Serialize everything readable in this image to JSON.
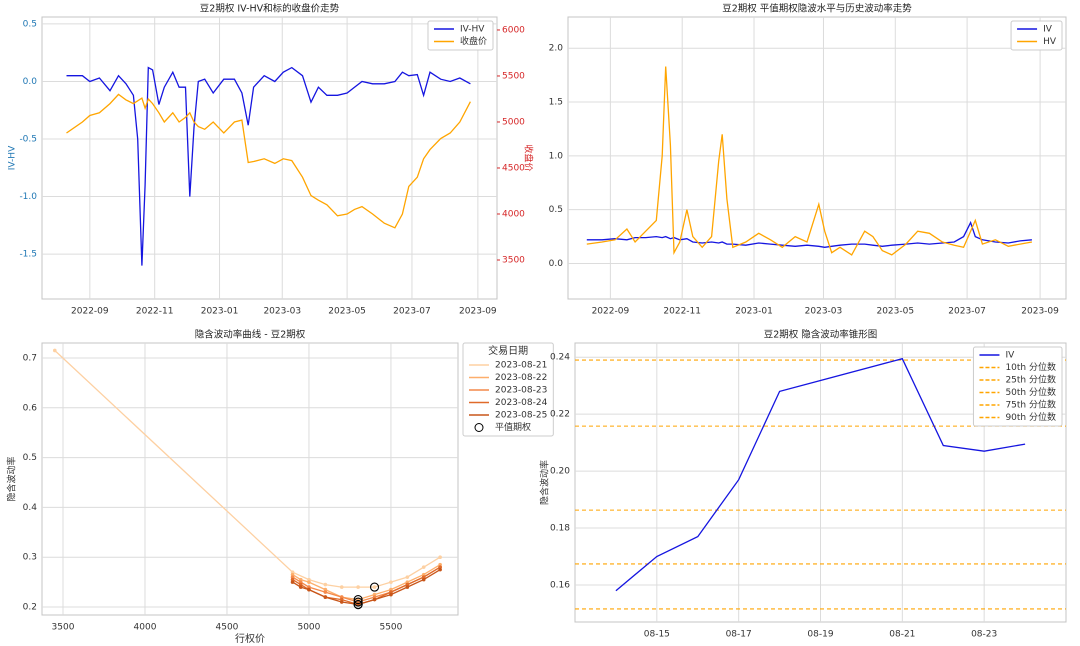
{
  "chart_data": [
    {
      "type": "line",
      "title": "豆2期权 IV-HV和标的收盘价走势",
      "ylabel": "IV-HV",
      "y2label": "收盘价",
      "ycolor": "#1f77b4",
      "y2color": "#d62728",
      "grid": true,
      "legend": "upper right",
      "x": [
        "2022-08-10",
        "2022-08-25",
        "2022-09-01",
        "2022-09-10",
        "2022-09-20",
        "2022-09-28",
        "2022-10-05",
        "2022-10-12",
        "2022-10-16",
        "2022-10-20",
        "2022-10-23",
        "2022-10-26",
        "2022-10-30",
        "2022-11-05",
        "2022-11-10",
        "2022-11-18",
        "2022-11-24",
        "2022-11-30",
        "2022-12-04",
        "2022-12-08",
        "2022-12-12",
        "2022-12-18",
        "2022-12-26",
        "2023-01-05",
        "2023-01-15",
        "2023-01-22",
        "2023-01-28",
        "2023-02-02",
        "2023-02-12",
        "2023-02-22",
        "2023-03-02",
        "2023-03-10",
        "2023-03-20",
        "2023-03-28",
        "2023-04-04",
        "2023-04-12",
        "2023-04-22",
        "2023-05-01",
        "2023-05-08",
        "2023-05-15",
        "2023-05-25",
        "2023-06-05",
        "2023-06-15",
        "2023-06-22",
        "2023-06-28",
        "2023-07-06",
        "2023-07-12",
        "2023-07-18",
        "2023-07-28",
        "2023-08-06",
        "2023-08-15",
        "2023-08-25"
      ],
      "series": [
        {
          "name": "IV-HV",
          "color": "#1515e0",
          "values": [
            0.05,
            0.05,
            0.0,
            0.03,
            -0.08,
            0.05,
            -0.02,
            -0.12,
            -0.5,
            -1.6,
            -0.9,
            0.12,
            0.1,
            -0.2,
            -0.05,
            0.08,
            -0.05,
            -0.05,
            -1.0,
            -0.4,
            0.0,
            0.02,
            -0.1,
            0.02,
            0.02,
            -0.1,
            -0.38,
            -0.05,
            0.05,
            0.0,
            0.08,
            0.12,
            0.05,
            -0.18,
            -0.05,
            -0.12,
            -0.12,
            -0.1,
            -0.05,
            0.0,
            -0.02,
            -0.02,
            0.0,
            0.08,
            0.05,
            0.06,
            -0.12,
            0.08,
            0.02,
            0.0,
            0.03,
            -0.02
          ]
        },
        {
          "name": "收盘价",
          "color": "#ffa500",
          "axis": "y2",
          "values": [
            4880,
            5000,
            5070,
            5100,
            5200,
            5300,
            5240,
            5200,
            5230,
            5260,
            5150,
            5250,
            5200,
            5100,
            5000,
            5100,
            5000,
            5050,
            5100,
            5000,
            4950,
            4920,
            5000,
            4880,
            5000,
            5020,
            4560,
            4570,
            4600,
            4550,
            4600,
            4580,
            4400,
            4200,
            4150,
            4100,
            3980,
            4000,
            4050,
            4080,
            4000,
            3900,
            3850,
            4000,
            4300,
            4400,
            4600,
            4700,
            4820,
            4880,
            5000,
            5220
          ]
        }
      ],
      "xlim": [
        "2022-07-18",
        "2023-09-19"
      ],
      "xticks": [
        {
          "value": "2022-09-01",
          "label": "2022-09"
        },
        {
          "value": "2022-11-01",
          "label": "2022-11"
        },
        {
          "value": "2023-01-01",
          "label": "2023-01"
        },
        {
          "value": "2023-03-01",
          "label": "2023-03"
        },
        {
          "value": "2023-05-01",
          "label": "2023-05"
        },
        {
          "value": "2023-07-01",
          "label": "2023-07"
        },
        {
          "value": "2023-09-01",
          "label": "2023-09"
        }
      ],
      "ylim": [
        -1.89,
        0.56
      ],
      "yticks": [
        -1.5,
        {
          "value": -1.0,
          "label": "-1.0"
        },
        -0.5,
        {
          "value": 0,
          "label": "0.0"
        },
        0.5
      ],
      "y2lim": [
        3076,
        6141
      ],
      "y2ticks": [
        3500,
        4000,
        4500,
        5000,
        5500,
        6000
      ]
    },
    {
      "type": "line",
      "title": "豆2期权 平值期权隐波水平与历史波动率走势",
      "grid": true,
      "legend": "upper right",
      "x": [
        "2022-08-12",
        "2022-08-25",
        "2022-09-05",
        "2022-09-15",
        "2022-09-22",
        "2022-10-01",
        "2022-10-10",
        "2022-10-15",
        "2022-10-18",
        "2022-10-22",
        "2022-10-25",
        "2022-10-30",
        "2022-11-05",
        "2022-11-10",
        "2022-11-18",
        "2022-11-26",
        "2022-12-02",
        "2022-12-05",
        "2022-12-09",
        "2022-12-14",
        "2022-12-25",
        "2023-01-05",
        "2023-01-15",
        "2023-01-25",
        "2023-02-05",
        "2023-02-15",
        "2023-02-25",
        "2023-03-02",
        "2023-03-08",
        "2023-03-15",
        "2023-03-25",
        "2023-04-05",
        "2023-04-12",
        "2023-04-20",
        "2023-04-28",
        "2023-05-10",
        "2023-05-20",
        "2023-05-30",
        "2023-06-10",
        "2023-06-20",
        "2023-06-28",
        "2023-07-04",
        "2023-07-08",
        "2023-07-14",
        "2023-07-25",
        "2023-08-05",
        "2023-08-15",
        "2023-08-25"
      ],
      "series": [
        {
          "name": "IV",
          "color": "#1515e0",
          "values": [
            0.22,
            0.22,
            0.23,
            0.22,
            0.24,
            0.24,
            0.25,
            0.24,
            0.25,
            0.23,
            0.24,
            0.22,
            0.23,
            0.2,
            0.19,
            0.2,
            0.19,
            0.2,
            0.18,
            0.18,
            0.17,
            0.19,
            0.18,
            0.17,
            0.16,
            0.17,
            0.16,
            0.15,
            0.16,
            0.17,
            0.18,
            0.18,
            0.17,
            0.16,
            0.17,
            0.18,
            0.19,
            0.18,
            0.19,
            0.2,
            0.25,
            0.38,
            0.25,
            0.22,
            0.2,
            0.19,
            0.21,
            0.22
          ]
        },
        {
          "name": "HV",
          "color": "#ffa500",
          "values": [
            0.18,
            0.2,
            0.22,
            0.32,
            0.2,
            0.3,
            0.4,
            1.0,
            1.83,
            1.1,
            0.1,
            0.2,
            0.5,
            0.25,
            0.15,
            0.25,
            0.95,
            1.2,
            0.6,
            0.15,
            0.2,
            0.28,
            0.22,
            0.15,
            0.25,
            0.2,
            0.55,
            0.3,
            0.1,
            0.15,
            0.08,
            0.3,
            0.25,
            0.12,
            0.08,
            0.18,
            0.3,
            0.28,
            0.2,
            0.17,
            0.15,
            0.3,
            0.4,
            0.18,
            0.22,
            0.16,
            0.18,
            0.2
          ]
        }
      ],
      "xlim": [
        "2022-07-27",
        "2023-09-23"
      ],
      "xticks": [
        {
          "value": "2022-09-01",
          "label": "2022-09"
        },
        {
          "value": "2022-11-01",
          "label": "2022-11"
        },
        {
          "value": "2023-01-01",
          "label": "2023-01"
        },
        {
          "value": "2023-03-01",
          "label": "2023-03"
        },
        {
          "value": "2023-05-01",
          "label": "2023-05"
        },
        {
          "value": "2023-07-01",
          "label": "2023-07"
        },
        {
          "value": "2023-09-01",
          "label": "2023-09"
        }
      ],
      "ylim": [
        -0.33,
        2.29
      ],
      "yticks": [
        {
          "value": 0,
          "label": "0.0"
        },
        0.5,
        {
          "value": 1.0,
          "label": "1.0"
        },
        1.5,
        {
          "value": 2.0,
          "label": "2.0"
        }
      ]
    },
    {
      "type": "line",
      "title": "隐含波动率曲线 - 豆2期权",
      "xlabel": "行权价",
      "ylabel": "隐含波动率",
      "grid": true,
      "markers": true,
      "legend": "outside",
      "legend_title": "交易日期",
      "series": [
        {
          "name": "2023-08-21",
          "color": "#fdd0a2",
          "x": [
            3450,
            4900,
            5000,
            5100,
            5200,
            5300,
            5400,
            5500,
            5600,
            5700,
            5800
          ],
          "values": [
            0.715,
            0.27,
            0.255,
            0.245,
            0.24,
            0.24,
            0.24,
            0.25,
            0.26,
            0.28,
            0.3
          ]
        },
        {
          "name": "2023-08-22",
          "color": "#fdae6b",
          "x": [
            4900,
            4950,
            5000,
            5100,
            5200,
            5300,
            5400,
            5500,
            5600,
            5700,
            5800
          ],
          "values": [
            0.265,
            0.255,
            0.25,
            0.235,
            0.22,
            0.215,
            0.225,
            0.235,
            0.25,
            0.265,
            0.285
          ]
        },
        {
          "name": "2023-08-23",
          "color": "#f4894a",
          "x": [
            4900,
            4950,
            5000,
            5100,
            5200,
            5300,
            5400,
            5500,
            5600,
            5700,
            5800
          ],
          "values": [
            0.26,
            0.25,
            0.24,
            0.23,
            0.22,
            0.21,
            0.22,
            0.23,
            0.245,
            0.26,
            0.28
          ]
        },
        {
          "name": "2023-08-24",
          "color": "#e06a2a",
          "x": [
            4900,
            4950,
            5000,
            5100,
            5200,
            5300,
            5400,
            5500,
            5600,
            5700,
            5800
          ],
          "values": [
            0.255,
            0.245,
            0.235,
            0.22,
            0.215,
            0.205,
            0.215,
            0.23,
            0.245,
            0.26,
            0.28
          ]
        },
        {
          "name": "2023-08-25",
          "color": "#c8561a",
          "x": [
            4900,
            4950,
            5000,
            5100,
            5200,
            5300,
            5400,
            5500,
            5600,
            5700,
            5800
          ],
          "values": [
            0.25,
            0.24,
            0.235,
            0.22,
            0.21,
            0.205,
            0.215,
            0.225,
            0.24,
            0.255,
            0.275
          ]
        }
      ],
      "highlight": {
        "name": "平值期权",
        "color": "#000000",
        "x": [
          5400,
          5300,
          5300,
          5300,
          5300
        ],
        "values": [
          0.24,
          0.215,
          0.21,
          0.205,
          0.205
        ]
      },
      "xlim": [
        3372,
        5909
      ],
      "xticks": [
        3500,
        4000,
        4500,
        5000,
        5500
      ],
      "ylim": [
        0.184,
        0.73
      ],
      "yticks": [
        0.2,
        0.3,
        0.4,
        0.5,
        0.6,
        0.7
      ]
    },
    {
      "type": "line",
      "title": "豆2期权 隐含波动率锥形图",
      "ylabel": "隐含波动率",
      "grid": true,
      "legend": "upper right",
      "hline_style": "dashed",
      "x": [
        "08-14",
        "08-15",
        "08-16",
        "08-17",
        "08-18",
        "08-21",
        "08-22",
        "08-23",
        "08-24"
      ],
      "series": [
        {
          "name": "IV",
          "color": "#1515e0",
          "values": [
            0.158,
            0.17,
            0.177,
            0.197,
            0.228,
            0.2395,
            0.209,
            0.207,
            0.2095
          ]
        }
      ],
      "hlines": [
        {
          "name": "10th 分位数",
          "color": "#ffa500",
          "value": 0.1516
        },
        {
          "name": "25th 分位数",
          "color": "#ffa500",
          "value": 0.1674
        },
        {
          "name": "50th 分位数",
          "color": "#ffa500",
          "value": 0.1863
        },
        {
          "name": "75th 分位数",
          "color": "#ffa500",
          "value": 0.2158
        },
        {
          "name": "90th 分位数",
          "color": "#ffa500",
          "value": 0.239
        }
      ],
      "xlim": [
        "08-13",
        "08-25"
      ],
      "xticks": [
        "08-15",
        "08-17",
        "08-19",
        "08-21",
        "08-23"
      ],
      "ylim": [
        0.147,
        0.245
      ],
      "yticks": [
        0.16,
        0.18,
        {
          "value": 0.2,
          "label": "0.20"
        },
        0.22,
        0.24
      ]
    }
  ]
}
